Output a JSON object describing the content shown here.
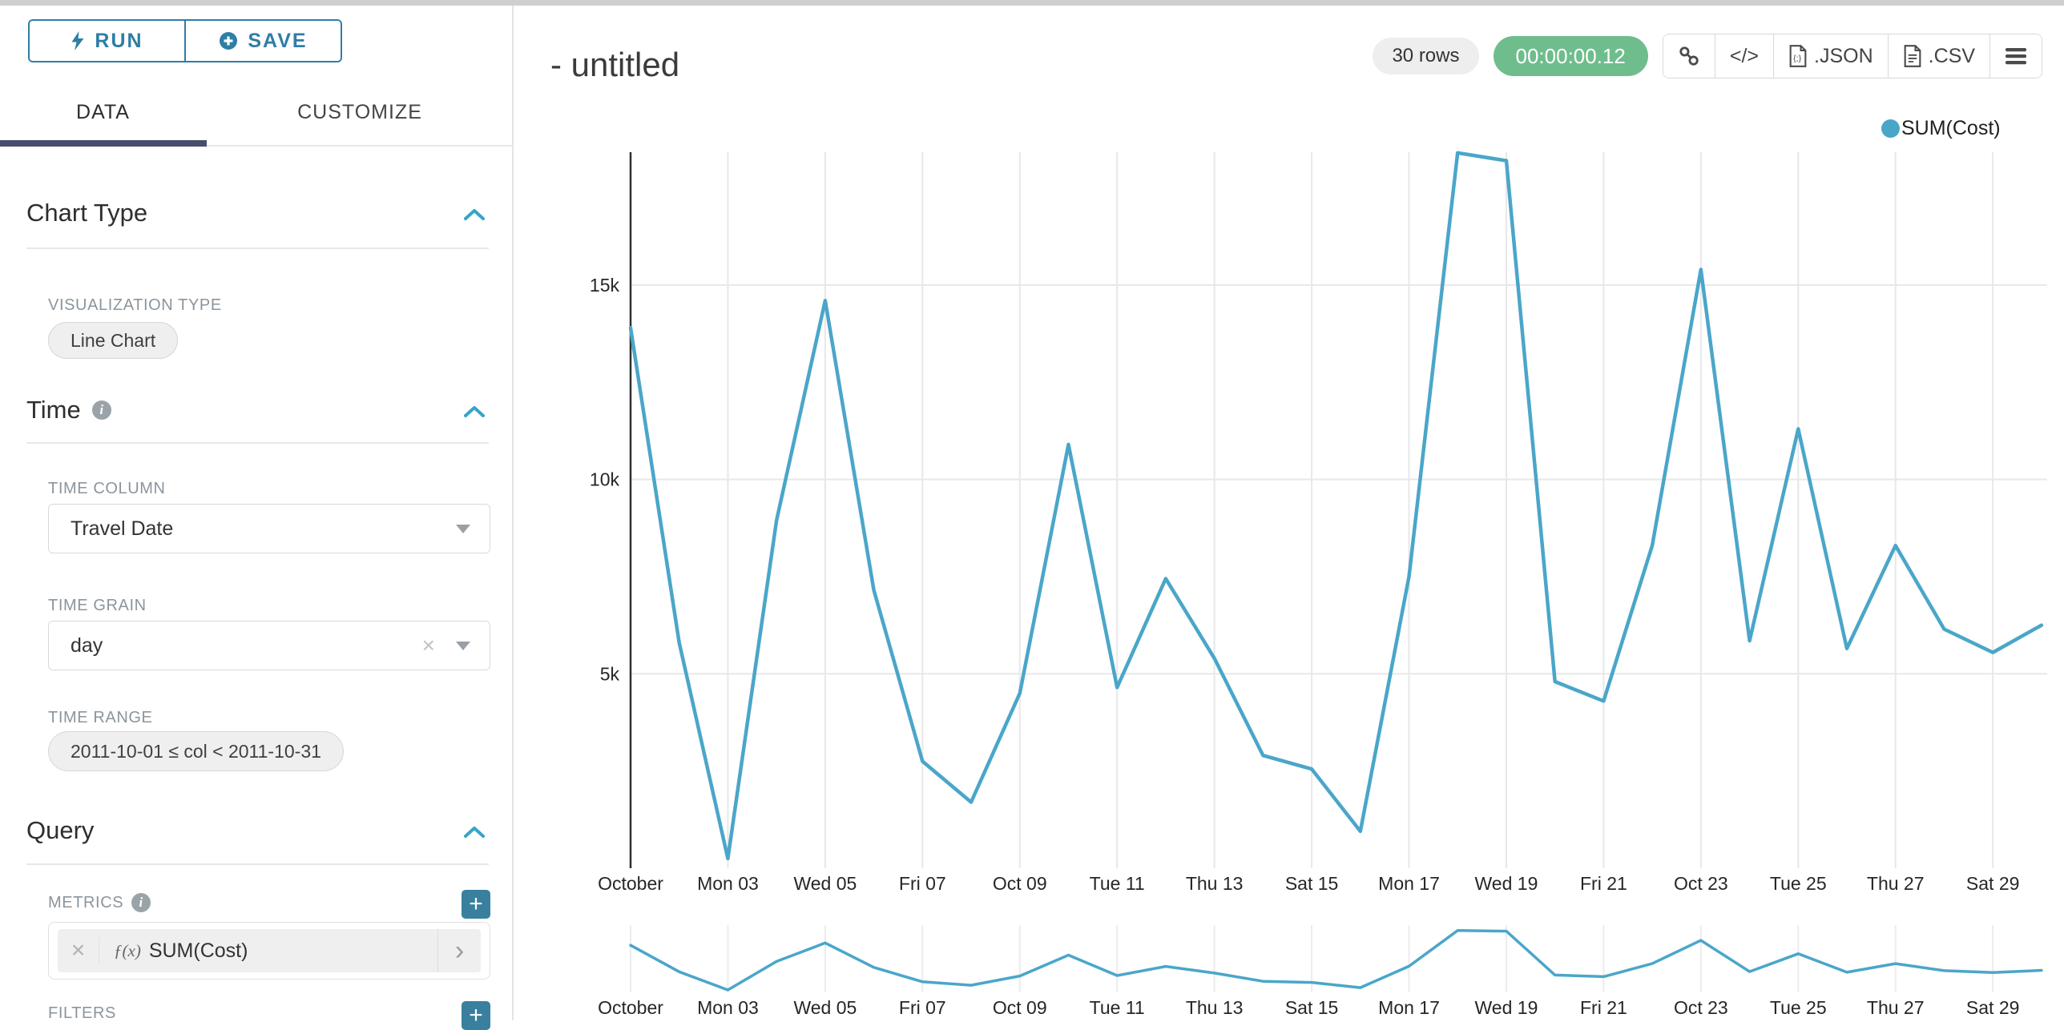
{
  "panel": {
    "run_label": "RUN",
    "save_label": "SAVE",
    "tabs": [
      {
        "label": "DATA",
        "active": true
      },
      {
        "label": "CUSTOMIZE",
        "active": false
      }
    ],
    "chart_type": {
      "title": "Chart Type",
      "viz_type_label": "VISUALIZATION TYPE",
      "viz_type_value": "Line Chart"
    },
    "time": {
      "title": "Time",
      "time_column_label": "TIME COLUMN",
      "time_column_value": "Travel Date",
      "time_grain_label": "TIME GRAIN",
      "time_grain_value": "day",
      "time_range_label": "TIME RANGE",
      "time_range_value": "2011-10-01 ≤ col < 2011-10-31"
    },
    "query": {
      "title": "Query",
      "metrics_label": "METRICS",
      "metric_prefix": "ƒ(x)",
      "metric_value": "SUM(Cost)",
      "filters_label": "FILTERS"
    }
  },
  "header": {
    "title": "- untitled",
    "row_count": "30 rows",
    "timer": "00:00:00.12",
    "code_label": "</>",
    "export_json_label": ".JSON",
    "export_csv_label": ".CSV"
  },
  "legend": {
    "label": "SUM(Cost)"
  },
  "colors": {
    "line": "#4aa6c9",
    "grid": "#e8e8e8",
    "mini_grid": "#ececec",
    "axis": "#2f2f2f",
    "tick_text": "#262626",
    "accent_blue": "#35a5c9",
    "teal_button": "#39809e",
    "green_badge": "#6fbd8c",
    "tab_underline": "#474d6d",
    "outline_button": "#2e7ea5"
  },
  "chart_data": {
    "type": "line",
    "title": "- untitled",
    "x": [
      "Oct 01",
      "Oct 02",
      "Oct 03",
      "Oct 04",
      "Oct 05",
      "Oct 06",
      "Oct 07",
      "Oct 08",
      "Oct 09",
      "Oct 10",
      "Oct 11",
      "Oct 12",
      "Oct 13",
      "Oct 14",
      "Oct 15",
      "Oct 16",
      "Oct 17",
      "Oct 18",
      "Oct 19",
      "Oct 20",
      "Oct 21",
      "Oct 22",
      "Oct 23",
      "Oct 24",
      "Oct 25",
      "Oct 26",
      "Oct 27",
      "Oct 28",
      "Oct 29",
      "Oct 30"
    ],
    "series": [
      {
        "name": "SUM(Cost)",
        "values": [
          13900,
          5800,
          250,
          8950,
          14600,
          7150,
          2750,
          1700,
          4500,
          10900,
          4650,
          7450,
          5400,
          2900,
          2550,
          950,
          7500,
          18400,
          18200,
          4800,
          4300,
          8300,
          15400,
          5850,
          11300,
          5650,
          8300,
          6150,
          5550,
          6250
        ]
      }
    ],
    "x_tick_labels": [
      "October",
      "Mon 03",
      "Wed 05",
      "Fri 07",
      "Oct 09",
      "Tue 11",
      "Thu 13",
      "Sat 15",
      "Mon 17",
      "Wed 19",
      "Fri 21",
      "Oct 23",
      "Tue 25",
      "Thu 27",
      "Sat 29"
    ],
    "yticks": [
      {
        "label": "5k",
        "value": 5000
      },
      {
        "label": "10k",
        "value": 10000
      },
      {
        "label": "15k",
        "value": 15000
      }
    ],
    "ylim": [
      0,
      18600
    ],
    "xlabel": "",
    "ylabel": "",
    "grid": true,
    "legend_position": "top-right",
    "has_context_brush_chart": true
  }
}
